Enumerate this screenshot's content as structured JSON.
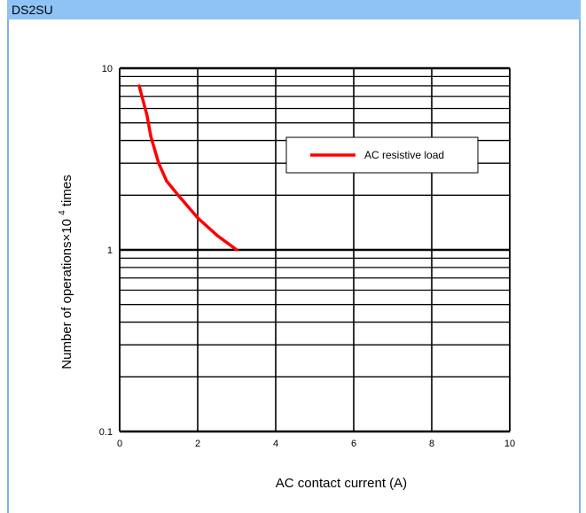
{
  "header": {
    "title": "DS2SU"
  },
  "colors": {
    "header_bg": "#8fc3f5",
    "frame_border": "#7fb2e6",
    "series": "#ff0000"
  },
  "chart_data": {
    "type": "line",
    "title": "",
    "xlabel": "AC contact current (A)",
    "ylabel_main": "Number of operations×10",
    "ylabel_sup": "4",
    "ylabel_tail": " times",
    "x_scale": "linear",
    "y_scale": "log",
    "xlim": [
      0,
      10
    ],
    "ylim": [
      0.1,
      10
    ],
    "x_ticks": [
      "0",
      "2",
      "4",
      "6",
      "8",
      "10"
    ],
    "y_ticks": [
      "0.1",
      "1",
      "10"
    ],
    "grid": true,
    "legend_position": "upper-right",
    "series": [
      {
        "name": "AC resistive load",
        "x": [
          0.5,
          0.7,
          0.8,
          1.0,
          1.2,
          1.5,
          2.0,
          2.5,
          3.0
        ],
        "y": [
          8,
          5.5,
          4.2,
          3.0,
          2.4,
          2.0,
          1.5,
          1.2,
          1.0
        ]
      }
    ]
  }
}
